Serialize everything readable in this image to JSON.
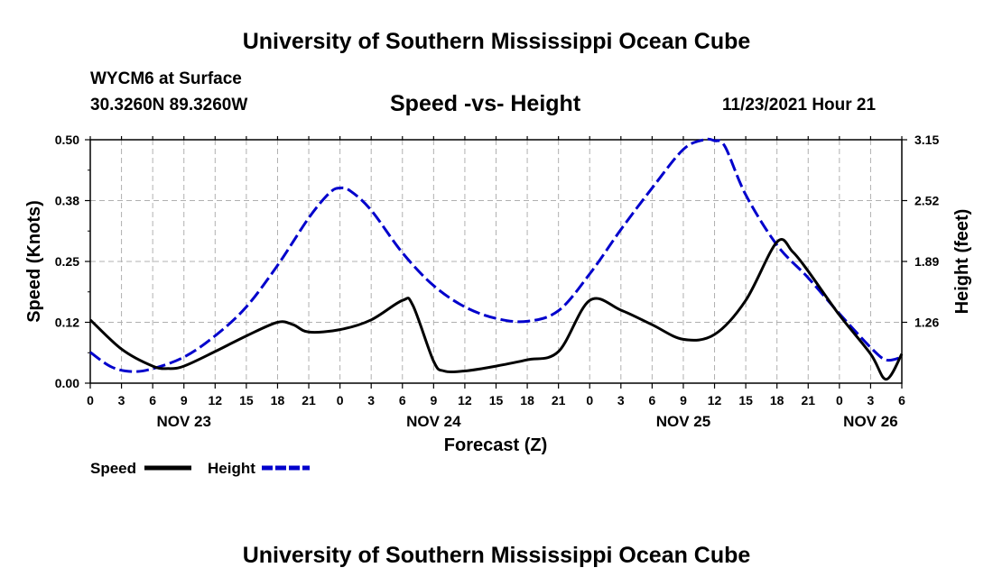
{
  "header": {
    "title": "University of Southern Mississippi Ocean Cube",
    "station": "WYCM6 at Surface",
    "coords": "30.3260N  89.3260W",
    "datetime": "11/23/2021 Hour 21"
  },
  "footer": {
    "title": "University of Southern Mississippi Ocean Cube"
  },
  "colors": {
    "speed": "#000000",
    "height": "#0000cc",
    "grid": "#b0b0b0"
  },
  "chart_data": {
    "type": "line",
    "title": "Speed -vs- Height",
    "xlabel": "Forecast (Z)",
    "ylabel": "Speed (Knots)",
    "y2label": "Height (feet)",
    "x_hours_range": [
      0,
      78
    ],
    "x_tick_labels": [
      "0",
      "3",
      "6",
      "9",
      "12",
      "15",
      "18",
      "21",
      "0",
      "3",
      "6",
      "9",
      "12",
      "15",
      "18",
      "21",
      "0",
      "3",
      "6",
      "9",
      "12",
      "15",
      "18",
      "21",
      "0",
      "3",
      "6"
    ],
    "date_labels": [
      {
        "label": "NOV 23",
        "hour": 9
      },
      {
        "label": "NOV 24",
        "hour": 33
      },
      {
        "label": "NOV 25",
        "hour": 57
      },
      {
        "label": "NOV 26",
        "hour": 75
      }
    ],
    "ylim": [
      0,
      0.5
    ],
    "y_tick_labels": [
      "0.00",
      "0.12",
      "0.25",
      "0.38",
      "0.50"
    ],
    "y_tick_values": [
      0,
      0.125,
      0.25,
      0.375,
      0.5
    ],
    "y2lim": [
      0.63,
      3.15
    ],
    "y2_tick_labels": [
      "1.26",
      "1.89",
      "2.52",
      "3.15"
    ],
    "y2_tick_values": [
      1.26,
      1.89,
      2.52,
      3.15
    ],
    "series": [
      {
        "name": "Speed",
        "axis": "left",
        "style": "solid",
        "x": [
          0,
          3,
          6,
          7.5,
          9,
          12,
          15,
          18,
          19.5,
          21,
          24,
          27,
          30,
          31,
          33,
          34,
          36,
          39,
          42,
          45,
          48,
          51,
          54,
          57,
          60,
          63,
          66,
          67.5,
          69,
          72,
          75,
          76.5,
          78
        ],
        "values": [
          0.13,
          0.07,
          0.035,
          0.03,
          0.035,
          0.065,
          0.097,
          0.125,
          0.12,
          0.105,
          0.11,
          0.13,
          0.17,
          0.16,
          0.045,
          0.025,
          0.025,
          0.035,
          0.048,
          0.065,
          0.17,
          0.15,
          0.12,
          0.09,
          0.1,
          0.17,
          0.29,
          0.27,
          0.23,
          0.14,
          0.06,
          0.008,
          0.06
        ]
      },
      {
        "name": "Height",
        "axis": "right",
        "style": "dashed",
        "x": [
          0,
          2,
          4,
          6,
          9,
          12,
          15,
          18,
          21,
          23,
          24,
          25,
          27,
          30,
          33,
          36,
          39,
          42,
          45,
          48,
          51,
          54,
          57,
          59,
          60,
          61,
          63,
          66,
          69,
          72,
          75,
          76.5,
          78
        ],
        "values": [
          0.95,
          0.8,
          0.75,
          0.78,
          0.9,
          1.12,
          1.42,
          1.85,
          2.34,
          2.6,
          2.65,
          2.62,
          2.42,
          1.98,
          1.64,
          1.42,
          1.3,
          1.27,
          1.38,
          1.76,
          2.22,
          2.65,
          3.05,
          3.15,
          3.14,
          3.08,
          2.58,
          2.06,
          1.72,
          1.35,
          1.0,
          0.87,
          0.9
        ]
      }
    ],
    "legend": [
      {
        "label": "Speed",
        "series": 0
      },
      {
        "label": "Height",
        "series": 1
      }
    ],
    "grid": true,
    "legend_position": "bottom-left"
  }
}
